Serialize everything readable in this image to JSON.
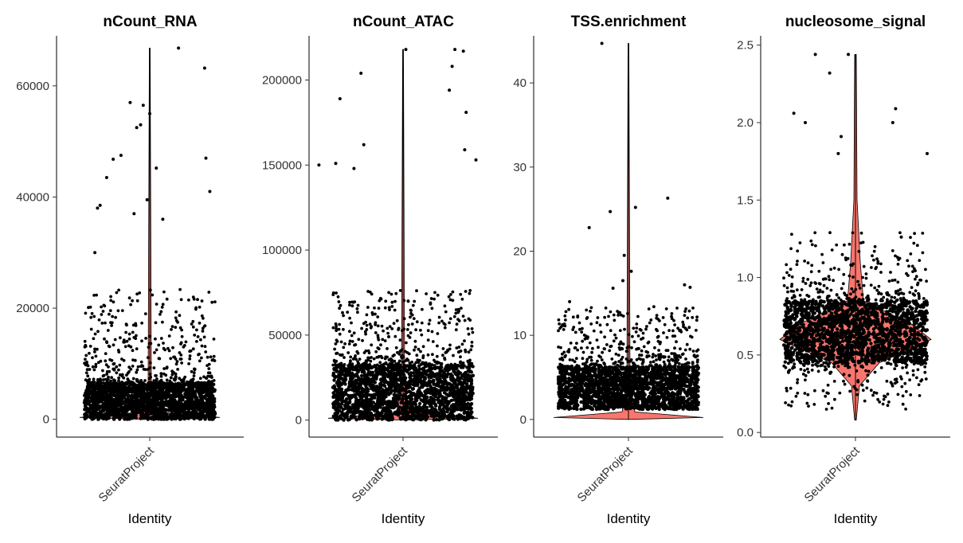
{
  "chart_data": [
    {
      "type": "violin",
      "title": "nCount_RNA",
      "xlabel": "Identity",
      "ylabel": "",
      "categories": [
        "SeuratProject"
      ],
      "yticks": [
        0,
        20000,
        40000,
        60000
      ],
      "ytick_labels": [
        "0",
        "20000",
        "40000",
        "60000"
      ],
      "ylim": [
        -3200,
        69000
      ],
      "range": [
        0,
        66800
      ],
      "bulk_range": [
        0,
        6500
      ],
      "violin_color": "#F8766D",
      "highlight_points": [
        {
          "x": 0.85,
          "y": 57000
        },
        {
          "x": 0.9,
          "y": 52500
        },
        {
          "x": 0.93,
          "y": 53000
        },
        {
          "x": 0.95,
          "y": 56500
        },
        {
          "x": 1.0,
          "y": 55000
        },
        {
          "x": 1.22,
          "y": 66800
        },
        {
          "x": 1.42,
          "y": 63200
        },
        {
          "x": 1.05,
          "y": 45200
        },
        {
          "x": 0.72,
          "y": 46800
        },
        {
          "x": 0.78,
          "y": 47500
        },
        {
          "x": 1.43,
          "y": 47000
        },
        {
          "x": 1.46,
          "y": 41000
        },
        {
          "x": 0.67,
          "y": 43500
        },
        {
          "x": 0.6,
          "y": 38000
        },
        {
          "x": 0.62,
          "y": 38500
        },
        {
          "x": 0.88,
          "y": 37000
        },
        {
          "x": 0.98,
          "y": 39500
        },
        {
          "x": 1.1,
          "y": 36000
        },
        {
          "x": 0.58,
          "y": 30000
        }
      ]
    },
    {
      "type": "violin",
      "title": "nCount_ATAC",
      "xlabel": "Identity",
      "ylabel": "",
      "categories": [
        "SeuratProject"
      ],
      "yticks": [
        0,
        50000,
        100000,
        150000,
        200000
      ],
      "ytick_labels": [
        "0",
        "50000",
        "100000",
        "150000",
        "200000"
      ],
      "ylim": [
        -10000,
        226000
      ],
      "range": [
        0,
        218000
      ],
      "bulk_range": [
        0,
        32000
      ],
      "violin_color": "#F8766D",
      "highlight_points": [
        {
          "x": 1.02,
          "y": 218000
        },
        {
          "x": 1.37,
          "y": 218000
        },
        {
          "x": 1.43,
          "y": 217000
        },
        {
          "x": 1.35,
          "y": 208000
        },
        {
          "x": 0.7,
          "y": 204000
        },
        {
          "x": 1.33,
          "y": 194000
        },
        {
          "x": 0.55,
          "y": 189000
        },
        {
          "x": 1.45,
          "y": 181000
        },
        {
          "x": 0.72,
          "y": 162000
        },
        {
          "x": 1.44,
          "y": 159000
        },
        {
          "x": 1.52,
          "y": 153000
        },
        {
          "x": 0.4,
          "y": 150000
        },
        {
          "x": 0.52,
          "y": 151000
        },
        {
          "x": 0.65,
          "y": 148000
        }
      ]
    },
    {
      "type": "violin",
      "title": "TSS.enrichment",
      "xlabel": "Identity",
      "ylabel": "",
      "categories": [
        "SeuratProject"
      ],
      "yticks": [
        0,
        10,
        20,
        30,
        40
      ],
      "ytick_labels": [
        "0",
        "10",
        "20",
        "30",
        "40"
      ],
      "ylim": [
        -2.1,
        45.6
      ],
      "range": [
        0,
        44.7
      ],
      "bulk_range": [
        1.2,
        6.2
      ],
      "violin_color": "#F8766D",
      "highlight_points": [
        {
          "x": 0.81,
          "y": 44.7
        },
        {
          "x": 1.28,
          "y": 26.3
        },
        {
          "x": 0.72,
          "y": 22.8
        },
        {
          "x": 0.87,
          "y": 24.7
        },
        {
          "x": 1.05,
          "y": 25.2
        },
        {
          "x": 0.97,
          "y": 19.5
        },
        {
          "x": 1.02,
          "y": 17.6
        },
        {
          "x": 0.96,
          "y": 16.5
        },
        {
          "x": 1.4,
          "y": 16.0
        },
        {
          "x": 1.44,
          "y": 15.7
        },
        {
          "x": 0.58,
          "y": 14.0
        },
        {
          "x": 0.89,
          "y": 15.6
        }
      ]
    },
    {
      "type": "violin",
      "title": "nucleosome_signal",
      "xlabel": "Identity",
      "ylabel": "",
      "categories": [
        "SeuratProject"
      ],
      "yticks": [
        0.0,
        0.5,
        1.0,
        1.5,
        2.0,
        2.5
      ],
      "ytick_labels": [
        "0.0",
        "0.5",
        "1.0",
        "1.5",
        "2.0",
        "2.5"
      ],
      "ylim": [
        -0.03,
        2.56
      ],
      "range": [
        0.08,
        2.44
      ],
      "bulk_range": [
        0.45,
        0.85
      ],
      "violin_color": "#F8766D",
      "highlight_points": [
        {
          "x": 0.72,
          "y": 2.44
        },
        {
          "x": 0.95,
          "y": 2.44
        },
        {
          "x": 0.82,
          "y": 2.32
        },
        {
          "x": 1.28,
          "y": 2.09
        },
        {
          "x": 0.57,
          "y": 2.06
        },
        {
          "x": 0.65,
          "y": 2.0
        },
        {
          "x": 1.26,
          "y": 2.0
        },
        {
          "x": 0.9,
          "y": 1.91
        },
        {
          "x": 1.5,
          "y": 1.8
        },
        {
          "x": 0.88,
          "y": 1.8
        }
      ]
    }
  ]
}
